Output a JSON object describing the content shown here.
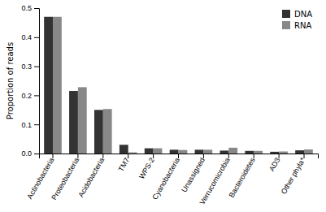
{
  "chart_data": {
    "type": "bar",
    "categories": [
      "Actinobacteria",
      "Proteobacteria",
      "Acidobacteria",
      "TM7",
      "WPS-2",
      "Cyanobacteria",
      "Unassigned",
      "Verrucomicrobia",
      "Bacteroidetes",
      "AD3",
      "Other phyla*"
    ],
    "series": [
      {
        "name": "DNA",
        "color": "#333333",
        "values": [
          0.47,
          0.215,
          0.15,
          0.03,
          0.018,
          0.013,
          0.013,
          0.01,
          0.009,
          0.006,
          0.011
        ]
      },
      {
        "name": "RNA",
        "color": "#888888",
        "values": [
          0.47,
          0.228,
          0.153,
          0.004,
          0.018,
          0.012,
          0.013,
          0.02,
          0.009,
          0.007,
          0.014
        ]
      }
    ],
    "ylabel": "Proportion of reads",
    "ylim": [
      0,
      0.5
    ],
    "yticks": [
      {
        "value": 0,
        "label": "0.0"
      },
      0.1,
      0.2,
      0.3,
      0.4,
      0.5
    ],
    "legend": "upper right",
    "grid": false
  }
}
